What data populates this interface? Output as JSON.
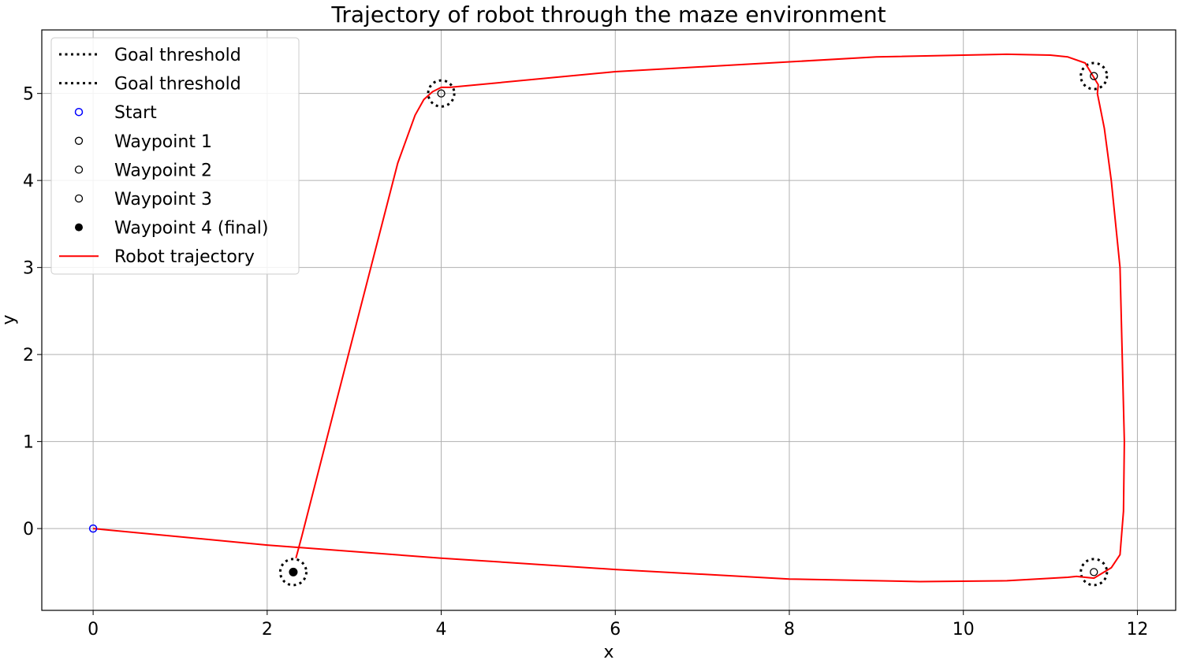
{
  "chart_data": {
    "type": "line",
    "title": "Trajectory of robot through the maze environment",
    "xlabel": "x",
    "ylabel": "y",
    "xlim": [
      -0.59,
      12.44
    ],
    "ylim": [
      -0.94,
      5.73
    ],
    "xticks": [
      0,
      2,
      4,
      6,
      8,
      10,
      12
    ],
    "yticks": [
      0,
      1,
      2,
      3,
      4,
      5
    ],
    "grid": true,
    "legend_position": "upper-left",
    "goal_threshold_radius": 0.15,
    "colors": {
      "trajectory": "#ff0000",
      "start": "#0000ff",
      "waypoint": "#000000",
      "grid": "#b0b0b0"
    },
    "legend": [
      {
        "label": "Goal threshold",
        "kind": "dotted-line"
      },
      {
        "label": "Goal threshold",
        "kind": "dotted-line"
      },
      {
        "label": "Start",
        "kind": "open-blue"
      },
      {
        "label": "Waypoint 1",
        "kind": "open-black"
      },
      {
        "label": "Waypoint 2",
        "kind": "open-black"
      },
      {
        "label": "Waypoint 3",
        "kind": "open-black"
      },
      {
        "label": "Waypoint 4 (final)",
        "kind": "filled-black"
      },
      {
        "label": "Robot trajectory",
        "kind": "red-line"
      }
    ],
    "start": {
      "x": 0,
      "y": 0
    },
    "waypoints": [
      {
        "x": 4.0,
        "y": 5.0,
        "final": false
      },
      {
        "x": 11.5,
        "y": 5.2,
        "final": false
      },
      {
        "x": 11.5,
        "y": -0.5,
        "final": false
      },
      {
        "x": 2.3,
        "y": -0.5,
        "final": true
      }
    ],
    "trajectory": {
      "x": [
        0,
        2,
        4,
        6,
        8,
        9.5,
        10.5,
        11.2,
        11.3,
        11.4,
        11.5,
        11.7,
        11.8,
        11.84,
        11.85,
        11.8,
        11.7,
        11.62,
        11.57,
        11.54,
        11.55,
        11.4,
        11.2,
        11.0,
        10.5,
        9.0,
        6.0,
        4.1,
        4.0,
        3.9,
        3.8,
        3.7,
        3.5,
        2.8,
        2.4,
        2.33
      ],
      "y": [
        0,
        -0.19,
        -0.34,
        -0.47,
        -0.58,
        -0.61,
        -0.6,
        -0.56,
        -0.55,
        -0.56,
        -0.57,
        -0.45,
        -0.3,
        0.2,
        1.0,
        3.0,
        4.0,
        4.6,
        4.85,
        5.0,
        5.1,
        5.35,
        5.42,
        5.44,
        5.45,
        5.42,
        5.25,
        5.07,
        5.07,
        5.02,
        4.93,
        4.75,
        4.2,
        1.48,
        -0.08,
        -0.34
      ]
    }
  }
}
